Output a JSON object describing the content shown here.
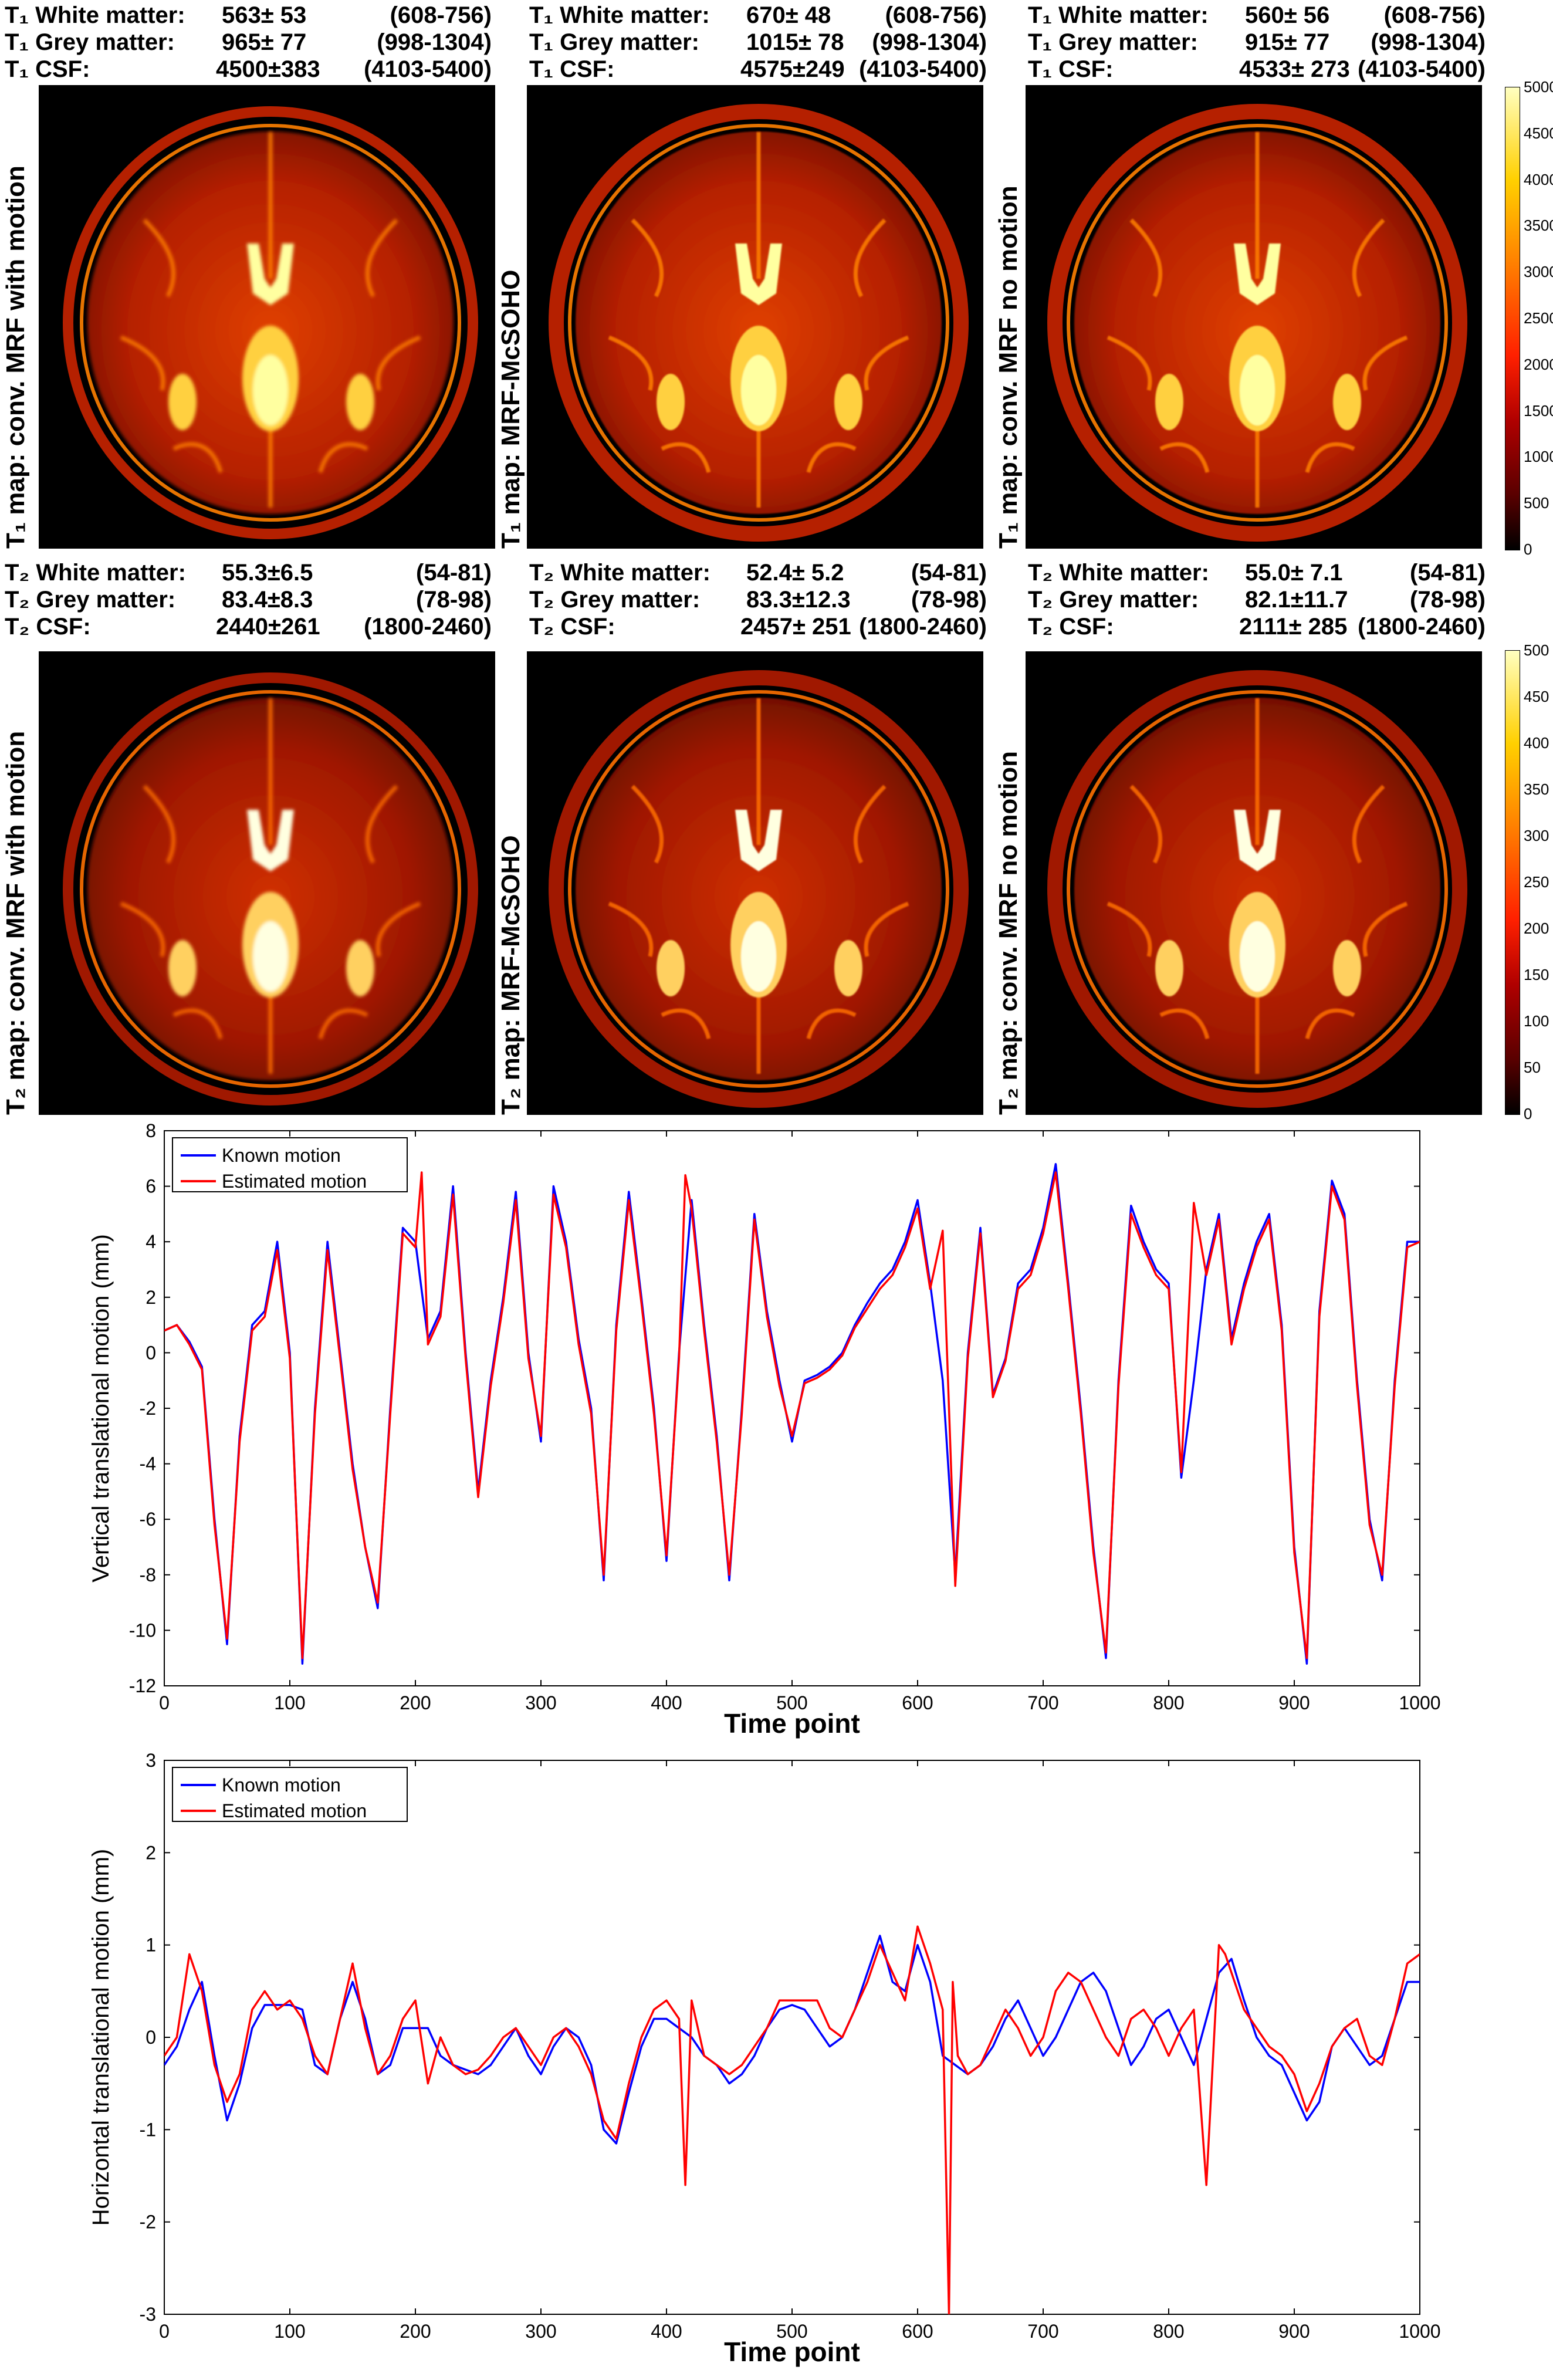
{
  "stats_t1": [
    {
      "rows": [
        {
          "label": "T₁ White matter:",
          "value": "563±  53",
          "range": "(608-756)"
        },
        {
          "label": "T₁ Grey matter:",
          "value": "965±  77",
          "range": "(998-1304)"
        },
        {
          "label": "T₁ CSF:",
          "value": "4500±383",
          "range": "(4103-5400)"
        }
      ]
    },
    {
      "rows": [
        {
          "label": "T₁ White matter:",
          "value": "670±  48",
          "range": "(608-756)"
        },
        {
          "label": "T₁ Grey matter:",
          "value": "1015±  78",
          "range": "(998-1304)"
        },
        {
          "label": "T₁ CSF:",
          "value": "4575±249",
          "range": "(4103-5400)"
        }
      ]
    },
    {
      "rows": [
        {
          "label": "T₁ White matter:",
          "value": "560±  56",
          "range": "(608-756)"
        },
        {
          "label": "T₁ Grey matter:",
          "value": "915±  77",
          "range": "(998-1304)"
        },
        {
          "label": "T₁ CSF:",
          "value": "4533± 273",
          "range": "(4103-5400)"
        }
      ]
    }
  ],
  "stats_t2": [
    {
      "rows": [
        {
          "label": "T₂ White matter:",
          "value": "55.3±6.5",
          "range": "(54-81)"
        },
        {
          "label": "T₂ Grey matter:",
          "value": "83.4±8.3",
          "range": "(78-98)"
        },
        {
          "label": "T₂ CSF:",
          "value": "2440±261",
          "range": "(1800-2460)"
        }
      ]
    },
    {
      "rows": [
        {
          "label": "T₂ White matter:",
          "value": "52.4±  5.2",
          "range": "(54-81)"
        },
        {
          "label": "T₂ Grey matter:",
          "value": "83.3±12.3",
          "range": "(78-98)"
        },
        {
          "label": "T₂ CSF:",
          "value": "2457± 251",
          "range": "(1800-2460)"
        }
      ]
    },
    {
      "rows": [
        {
          "label": "T₂ White matter:",
          "value": "55.0±  7.1",
          "range": "(54-81)"
        },
        {
          "label": "T₂ Grey matter:",
          "value": "82.1±11.7",
          "range": "(78-98)"
        },
        {
          "label": "T₂ CSF:",
          "value": "2111± 285",
          "range": "(1800-2460)"
        }
      ]
    }
  ],
  "panel_labels": {
    "t1": [
      "T₁ map: conv. MRF with motion",
      "T₁ map: MRF-McSOHO",
      "T₁ map: conv. MRF no motion"
    ],
    "t2": [
      "T₂ map: conv. MRF with motion",
      "T₂ map: MRF-McSOHO",
      "T₂ map: conv. MRF no motion"
    ]
  },
  "colorbar_t1": {
    "ticks": [
      "5000",
      "4500",
      "4000",
      "3500",
      "3000",
      "2500",
      "2000",
      "1500",
      "1000",
      "500",
      "0"
    ]
  },
  "colorbar_t2": {
    "ticks": [
      "500",
      "450",
      "400",
      "350",
      "300",
      "250",
      "200",
      "150",
      "100",
      "50",
      "0"
    ]
  },
  "colors": {
    "known": "#0000ff",
    "estimated": "#ff0000"
  },
  "chart_data": [
    {
      "type": "line",
      "xlabel": "Time point",
      "ylabel": "Vertical translational motion (mm)",
      "xlim": [
        0,
        1000
      ],
      "ylim": [
        -12,
        8
      ],
      "xticks": [
        "0",
        "100",
        "200",
        "300",
        "400",
        "500",
        "600",
        "700",
        "800",
        "900",
        "1000"
      ],
      "yticks": [
        "8",
        "6",
        "4",
        "2",
        "0",
        "-2",
        "-4",
        "-6",
        "-8",
        "-10",
        "-12"
      ],
      "legend": {
        "position": "top-left"
      },
      "series": [
        {
          "name": "Known motion",
          "x": [
            0,
            10,
            20,
            30,
            40,
            50,
            60,
            70,
            80,
            90,
            100,
            110,
            120,
            130,
            140,
            150,
            160,
            170,
            180,
            190,
            200,
            210,
            220,
            230,
            240,
            250,
            260,
            270,
            280,
            290,
            300,
            310,
            320,
            330,
            340,
            350,
            360,
            370,
            380,
            390,
            400,
            410,
            420,
            430,
            440,
            450,
            460,
            470,
            480,
            490,
            500,
            510,
            520,
            530,
            540,
            550,
            560,
            570,
            580,
            590,
            600,
            610,
            620,
            630,
            640,
            650,
            660,
            670,
            680,
            690,
            700,
            710,
            720,
            730,
            740,
            750,
            760,
            770,
            780,
            790,
            800,
            810,
            820,
            830,
            840,
            850,
            860,
            870,
            880,
            890,
            900,
            910,
            920,
            930,
            940,
            950,
            960,
            970,
            980,
            990,
            1000
          ],
          "values": [
            0.8,
            1,
            0.4,
            -0.5,
            -6,
            -10.5,
            -3,
            1,
            1.5,
            4,
            0,
            -11.2,
            -2,
            4,
            0,
            -4,
            -7,
            -9.2,
            -2,
            4.5,
            4,
            0.5,
            1.5,
            6,
            0,
            -5,
            -1,
            2,
            5.8,
            0,
            -3.2,
            6,
            4,
            0.5,
            -2,
            -8.2,
            1,
            5.8,
            2,
            -2,
            -7.5,
            0,
            5.5,
            1,
            -3,
            -8.2,
            -2,
            5,
            1.5,
            -1,
            -3.2,
            -1,
            -0.8,
            -0.5,
            0,
            1,
            1.8,
            2.5,
            3,
            4,
            5.5,
            2.5,
            -1,
            -8,
            0,
            4.5,
            -1.5,
            -0.2,
            2.5,
            3,
            4.5,
            6.8,
            2.5,
            -2,
            -7,
            -11,
            -1,
            5.3,
            4,
            3,
            2.5,
            -4.5,
            -1,
            3,
            5,
            0.5,
            2.5,
            4,
            5,
            1,
            -7,
            -11.2,
            1.5,
            6.2,
            5,
            -1,
            -6,
            -8.2,
            -1,
            4,
            4
          ]
        },
        {
          "name": "Estimated motion",
          "x": [
            0,
            10,
            20,
            30,
            40,
            50,
            60,
            70,
            80,
            90,
            100,
            110,
            120,
            130,
            140,
            150,
            160,
            170,
            180,
            190,
            200,
            205,
            210,
            220,
            230,
            240,
            250,
            260,
            270,
            280,
            290,
            300,
            310,
            320,
            330,
            340,
            350,
            360,
            370,
            380,
            390,
            400,
            410,
            415,
            420,
            430,
            440,
            450,
            460,
            470,
            480,
            490,
            500,
            510,
            520,
            530,
            540,
            550,
            560,
            570,
            580,
            590,
            600,
            610,
            620,
            630,
            640,
            650,
            660,
            670,
            680,
            690,
            700,
            710,
            720,
            730,
            740,
            750,
            760,
            770,
            780,
            790,
            800,
            810,
            820,
            830,
            840,
            850,
            860,
            870,
            880,
            890,
            900,
            910,
            920,
            930,
            940,
            950,
            960,
            970,
            980,
            990,
            1000
          ],
          "values": [
            0.8,
            1,
            0.3,
            -0.6,
            -6.2,
            -10.3,
            -3.2,
            0.8,
            1.3,
            3.7,
            -0.2,
            -11,
            -2.2,
            3.7,
            -0.2,
            -4.2,
            -7,
            -9,
            -2.2,
            4.3,
            3.8,
            6.5,
            0.3,
            1.3,
            5.7,
            -0.2,
            -5.2,
            -1.2,
            1.8,
            5.5,
            -0.2,
            -3,
            5.7,
            3.8,
            0.3,
            -2.2,
            -8,
            0.8,
            5.5,
            1.8,
            -2.2,
            -7.3,
            -0.2,
            6.4,
            5.2,
            0.8,
            -3.2,
            -8,
            -2.2,
            4.8,
            1.3,
            -1.2,
            -3,
            -1.1,
            -0.9,
            -0.6,
            -0.1,
            0.9,
            1.6,
            2.3,
            2.8,
            3.8,
            5.2,
            2.3,
            4.4,
            -8.4,
            -0.2,
            4.3,
            -1.6,
            -0.3,
            2.3,
            2.8,
            4.3,
            6.5,
            2.3,
            -2.2,
            -7.2,
            -10.8,
            -1.2,
            5,
            3.8,
            2.8,
            2.3,
            -4.3,
            5.4,
            2.8,
            4.8,
            0.3,
            2.3,
            3.8,
            4.8,
            0.8,
            -7.2,
            -11,
            1.3,
            6,
            4.8,
            -1.2,
            -6.2,
            -8,
            -1.2,
            3.8,
            4
          ]
        }
      ]
    },
    {
      "type": "line",
      "xlabel": "Time point",
      "ylabel": "Horizontal translational motion (mm)",
      "xlim": [
        0,
        1000
      ],
      "ylim": [
        -3,
        3
      ],
      "xticks": [
        "0",
        "100",
        "200",
        "300",
        "400",
        "500",
        "600",
        "700",
        "800",
        "900",
        "1000"
      ],
      "yticks": [
        "3",
        "2",
        "1",
        "0",
        "-1",
        "-2",
        "-3"
      ],
      "legend": {
        "position": "top-left"
      },
      "series": [
        {
          "name": "Known motion",
          "x": [
            0,
            10,
            20,
            30,
            40,
            50,
            60,
            70,
            80,
            90,
            100,
            110,
            120,
            130,
            140,
            150,
            160,
            170,
            180,
            190,
            200,
            210,
            220,
            230,
            240,
            250,
            260,
            270,
            280,
            290,
            300,
            310,
            320,
            330,
            340,
            350,
            360,
            370,
            380,
            390,
            400,
            410,
            420,
            430,
            440,
            450,
            460,
            470,
            480,
            490,
            500,
            510,
            520,
            530,
            540,
            550,
            560,
            570,
            580,
            590,
            600,
            610,
            620,
            630,
            640,
            650,
            660,
            670,
            680,
            690,
            700,
            710,
            720,
            730,
            740,
            750,
            760,
            770,
            780,
            790,
            800,
            810,
            820,
            830,
            840,
            850,
            860,
            870,
            880,
            890,
            900,
            910,
            920,
            930,
            940,
            950,
            960,
            970,
            980,
            990,
            1000
          ],
          "values": [
            -0.3,
            -0.1,
            0.3,
            0.6,
            -0.2,
            -0.9,
            -0.5,
            0.1,
            0.35,
            0.35,
            0.35,
            0.3,
            -0.3,
            -0.4,
            0.2,
            0.6,
            0.2,
            -0.4,
            -0.3,
            0.1,
            0.1,
            0.1,
            -0.2,
            -0.3,
            -0.35,
            -0.4,
            -0.3,
            -0.1,
            0.1,
            -0.2,
            -0.4,
            -0.1,
            0.1,
            0,
            -0.3,
            -1,
            -1.15,
            -0.6,
            -0.1,
            0.2,
            0.2,
            0.1,
            0,
            -0.2,
            -0.3,
            -0.5,
            -0.4,
            -0.2,
            0.1,
            0.3,
            0.35,
            0.3,
            0.1,
            -0.1,
            0,
            0.3,
            0.7,
            1.1,
            0.6,
            0.5,
            1,
            0.6,
            -0.2,
            -0.3,
            -0.4,
            -0.3,
            -0.1,
            0.2,
            0.4,
            0.1,
            -0.2,
            0,
            0.3,
            0.6,
            0.7,
            0.5,
            0.1,
            -0.3,
            -0.1,
            0.2,
            0.3,
            0,
            -0.3,
            0.2,
            0.7,
            0.85,
            0.4,
            0,
            -0.2,
            -0.3,
            -0.6,
            -0.9,
            -0.7,
            -0.1,
            0.1,
            -0.1,
            -0.3,
            -0.2,
            0.2,
            0.6,
            0.6
          ]
        },
        {
          "name": "Estimated motion",
          "x": [
            0,
            10,
            20,
            30,
            40,
            50,
            60,
            70,
            80,
            90,
            100,
            110,
            120,
            130,
            140,
            150,
            160,
            170,
            180,
            190,
            200,
            210,
            220,
            230,
            240,
            250,
            260,
            270,
            280,
            290,
            300,
            310,
            320,
            330,
            340,
            350,
            360,
            370,
            380,
            390,
            400,
            410,
            415,
            420,
            430,
            440,
            450,
            460,
            470,
            480,
            490,
            500,
            510,
            520,
            530,
            540,
            550,
            560,
            570,
            580,
            590,
            600,
            610,
            620,
            625,
            628,
            632,
            640,
            650,
            660,
            670,
            680,
            690,
            700,
            710,
            720,
            730,
            740,
            750,
            760,
            770,
            780,
            790,
            800,
            810,
            820,
            830,
            840,
            845,
            850,
            860,
            870,
            880,
            890,
            900,
            910,
            920,
            930,
            940,
            950,
            960,
            970,
            980,
            990,
            1000
          ],
          "values": [
            -0.2,
            0,
            0.9,
            0.5,
            -0.3,
            -0.7,
            -0.4,
            0.3,
            0.5,
            0.3,
            0.4,
            0.2,
            -0.2,
            -0.4,
            0.2,
            0.8,
            0.1,
            -0.4,
            -0.2,
            0.2,
            0.4,
            -0.5,
            0,
            -0.3,
            -0.4,
            -0.35,
            -0.2,
            0,
            0.1,
            -0.1,
            -0.3,
            0,
            0.1,
            -0.1,
            -0.4,
            -0.9,
            -1.1,
            -0.5,
            0,
            0.3,
            0.4,
            0.2,
            -1.6,
            0.4,
            -0.2,
            -0.3,
            -0.4,
            -0.3,
            -0.1,
            0.1,
            0.4,
            0.4,
            0.4,
            0.4,
            0.1,
            0,
            0.3,
            0.6,
            1,
            0.7,
            0.4,
            1.2,
            0.8,
            0.3,
            -3,
            0.6,
            -0.2,
            -0.4,
            -0.3,
            0,
            0.3,
            0.1,
            -0.2,
            0,
            0.5,
            0.7,
            0.6,
            0.3,
            0,
            -0.2,
            0.2,
            0.3,
            0.1,
            -0.2,
            0.1,
            0.3,
            -1.6,
            1,
            0.9,
            0.7,
            0.3,
            0.1,
            -0.1,
            -0.2,
            -0.4,
            -0.8,
            -0.5,
            -0.1,
            0.1,
            0.2,
            -0.2,
            -0.3,
            0.2,
            0.8,
            0.9
          ]
        }
      ]
    }
  ]
}
